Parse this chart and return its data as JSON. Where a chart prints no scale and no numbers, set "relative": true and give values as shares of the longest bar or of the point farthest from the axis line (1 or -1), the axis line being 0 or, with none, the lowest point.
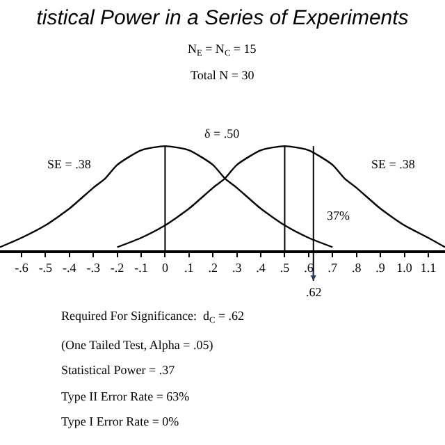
{
  "chart_data": {
    "type": "line",
    "relative": true,
    "title": "tistical Power in a Series of Experiments",
    "subtitle": "N$_{E}$ = N$_{C}$ = 15",
    "series": [
      {
        "color": "#000000",
        "x": [
          -0.69,
          -0.6,
          -0.5,
          -0.4,
          -0.3,
          -0.25,
          -0.2,
          -0.1,
          0,
          0.1,
          0.2,
          0.25,
          0.3,
          0.4,
          0.5,
          0.6,
          0.7
        ],
        "values": [
          0.03,
          0.12,
          0.24,
          0.4,
          0.6,
          0.69,
          0.82,
          0.96,
          1,
          0.96,
          0.82,
          0.69,
          0.6,
          0.4,
          0.24,
          0.12,
          0.03
        ]
      },
      {
        "color": "#000000",
        "x": [
          -0.2,
          -0.1,
          0,
          0.1,
          0.2,
          0.25,
          0.3,
          0.4,
          0.5,
          0.6,
          0.7,
          0.75,
          0.8,
          0.9,
          1.0,
          1.1,
          1.17
        ],
        "values": [
          0.03,
          0.12,
          0.24,
          0.4,
          0.6,
          0.69,
          0.82,
          0.96,
          1,
          0.96,
          0.82,
          0.69,
          0.6,
          0.4,
          0.24,
          0.12,
          0.03
        ]
      }
    ],
    "xlim": [
      -0.69,
      1.17
    ],
    "xticks": [
      {
        "value": -0.6,
        "label": "-.6"
      },
      {
        "value": -0.5,
        "label": "-.5"
      },
      {
        "value": -0.4,
        "label": "-.4"
      },
      {
        "value": -0.3,
        "label": "-.3"
      },
      {
        "value": -0.2,
        "label": "-.2"
      },
      {
        "value": -0.1,
        "label": "-.1"
      },
      0,
      {
        "value": 0.1,
        "label": ".1"
      },
      {
        "value": 0.2,
        "label": ".2"
      },
      {
        "value": 0.3,
        "label": ".3"
      },
      {
        "value": 0.4,
        "label": ".4"
      },
      {
        "value": 0.5,
        "label": ".5"
      },
      {
        "value": 0.6,
        "label": ".6"
      },
      {
        "value": 0.7,
        "label": ".7"
      },
      {
        "value": 0.8,
        "label": ".8"
      },
      {
        "value": 0.9,
        "label": ".9"
      },
      {
        "value": 1.0,
        "label": "1.0"
      },
      {
        "value": 1.1,
        "label": "1.1"
      }
    ],
    "ref_lines": [
      {
        "axis": "x",
        "value": 0
      },
      {
        "axis": "x",
        "value": 0.5
      },
      {
        "axis": "x",
        "value": 0.62,
        "label": ".62"
      }
    ],
    "annotations": [
      "SE = .38",
      "SE = .38",
      "37%",
      "δ = .50",
      "Total N = 30",
      "Required For Significance:  d$_{C}$ = .62",
      "(One Tailed Test, Alpha = .05)",
      "Statistical Power = .37",
      "Type II Error Rate = 63%",
      "Type I Error Rate = 0%"
    ],
    "marker": "none",
    "line_style": "solid"
  }
}
